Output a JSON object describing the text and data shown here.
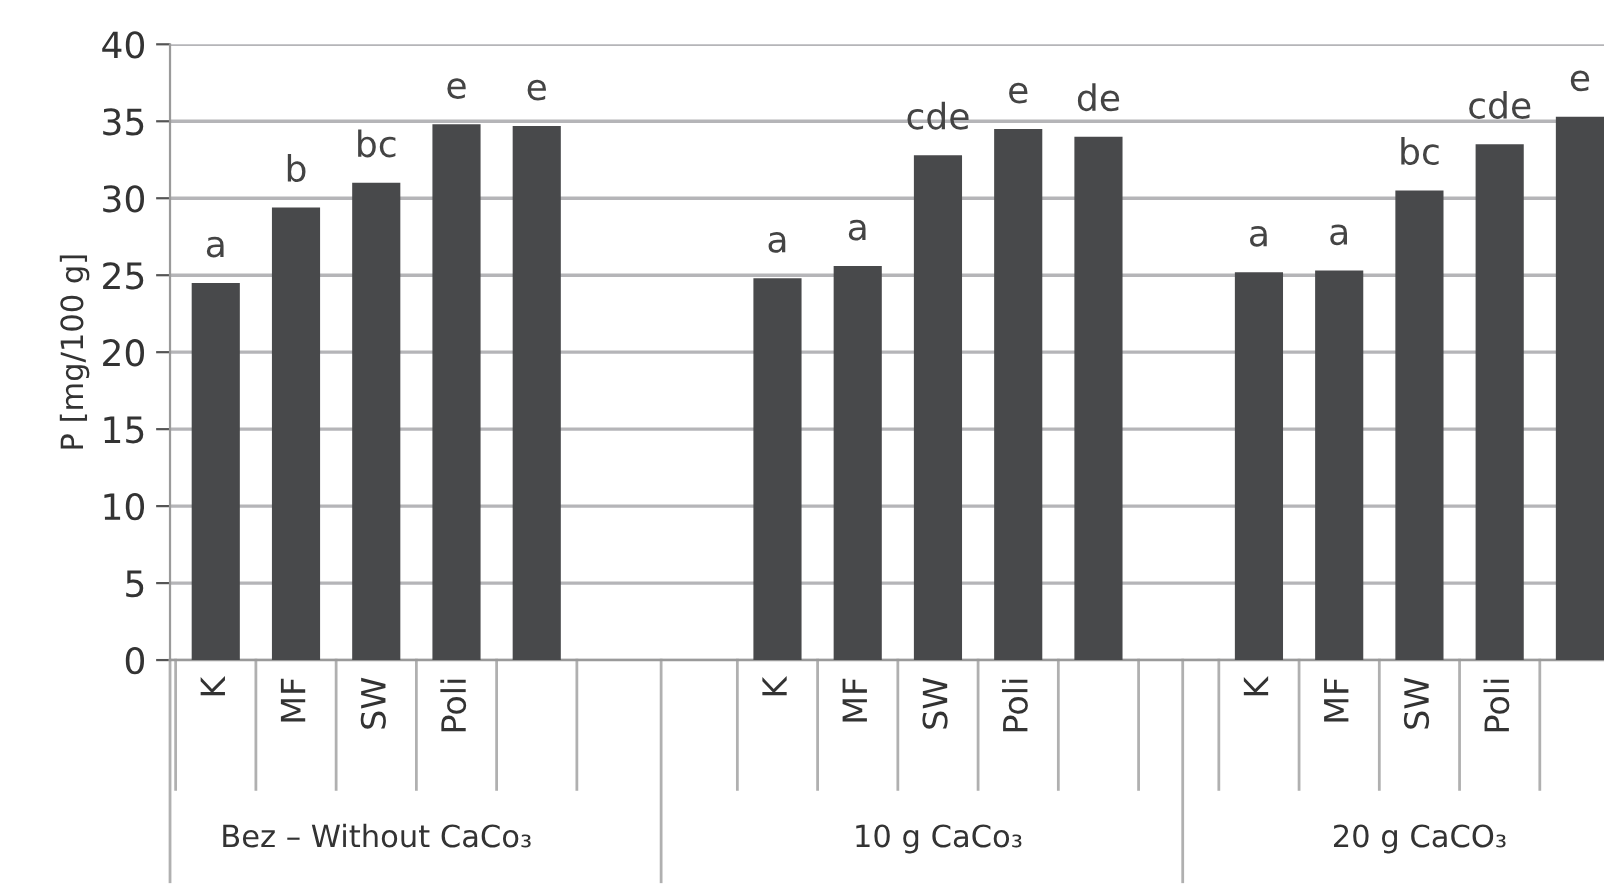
{
  "chart_data": {
    "type": "bar",
    "ylabel": "P [mg/100 g]",
    "categories": [
      "K",
      "MF",
      "SW",
      "Poli",
      null,
      null,
      null,
      "K",
      "MF",
      "SW",
      "Poli",
      null,
      null,
      "K",
      "MF",
      "SW",
      "Poli",
      null
    ],
    "values": [
      24.5,
      29.4,
      31.0,
      34.8,
      34.7,
      null,
      null,
      24.8,
      25.6,
      32.8,
      34.5,
      34.0,
      null,
      25.2,
      25.3,
      30.5,
      33.5,
      35.3
    ],
    "value_labels": [
      "a",
      "b",
      "bc",
      "e",
      "e",
      null,
      null,
      "a",
      "a",
      "cde",
      "e",
      "de",
      null,
      "a",
      "a",
      "bc",
      "cde",
      "e"
    ],
    "color": "#48494b",
    "ylim": [
      0,
      40
    ],
    "yticks": [
      0,
      5,
      10,
      15,
      20,
      25,
      30,
      35,
      40
    ],
    "grid": "y",
    "annotations": [
      "Bez – Without CaCo₃",
      "10 g CaCo₃",
      "20 g CaCO₃"
    ]
  }
}
